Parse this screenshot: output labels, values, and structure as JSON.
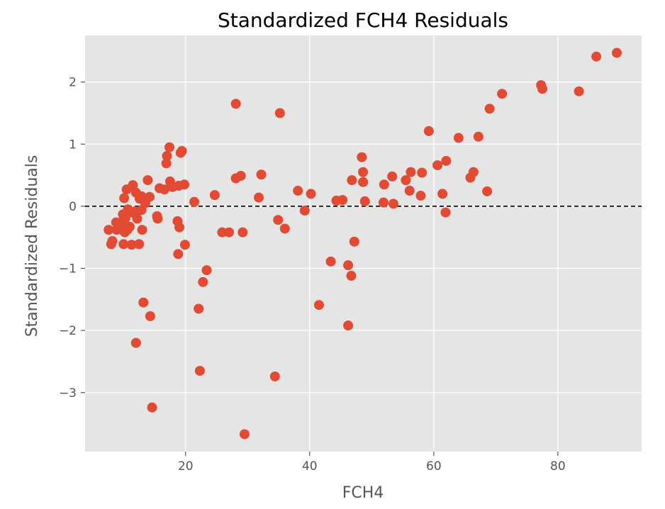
{
  "chart_data": {
    "type": "scatter",
    "title": "Standardized FCH4 Residuals",
    "xlabel": "FCH4",
    "ylabel": "Standardized Residuals",
    "xlim": [
      3.8,
      93.5
    ],
    "ylim": [
      -3.95,
      2.75
    ],
    "xticks": [
      20,
      40,
      60,
      80
    ],
    "yticks": [
      -3,
      -2,
      -1,
      0,
      1,
      2
    ],
    "xtick_labels": [
      "20",
      "40",
      "60",
      "80"
    ],
    "ytick_labels": [
      "−3",
      "−2",
      "−1",
      "0",
      "1",
      "2"
    ],
    "grid": true,
    "reference_line": {
      "y": 0,
      "style": "dashed",
      "color": "#000000"
    },
    "colors": {
      "background": "#e5e5e5",
      "grid": "#ffffff",
      "marker": "#e24a33"
    },
    "points": [
      [
        7.6,
        -0.38
      ],
      [
        8.0,
        -0.61
      ],
      [
        8.2,
        -0.56
      ],
      [
        8.8,
        -0.26
      ],
      [
        8.9,
        -0.38
      ],
      [
        9.3,
        -0.29
      ],
      [
        9.6,
        -0.37
      ],
      [
        9.7,
        -0.25
      ],
      [
        9.9,
        -0.13
      ],
      [
        10.0,
        -0.61
      ],
      [
        10.1,
        0.13
      ],
      [
        10.2,
        -0.42
      ],
      [
        10.3,
        -0.19
      ],
      [
        10.5,
        0.27
      ],
      [
        10.6,
        -0.38
      ],
      [
        10.7,
        -0.05
      ],
      [
        11.0,
        -0.33
      ],
      [
        11.3,
        -0.1
      ],
      [
        11.3,
        -0.62
      ],
      [
        11.5,
        0.34
      ],
      [
        11.9,
        -0.08
      ],
      [
        12.0,
        0.22
      ],
      [
        12.0,
        -2.2
      ],
      [
        12.2,
        -0.2
      ],
      [
        12.5,
        -0.61
      ],
      [
        12.6,
        0.12
      ],
      [
        12.9,
        0.16
      ],
      [
        12.9,
        -0.06
      ],
      [
        13.0,
        -0.38
      ],
      [
        13.2,
        -1.55
      ],
      [
        13.5,
        0.05
      ],
      [
        13.9,
        0.42
      ],
      [
        14.2,
        0.15
      ],
      [
        14.3,
        -1.77
      ],
      [
        14.6,
        -3.24
      ],
      [
        15.4,
        -0.16
      ],
      [
        15.5,
        -0.2
      ],
      [
        15.8,
        0.29
      ],
      [
        16.6,
        0.27
      ],
      [
        16.9,
        0.69
      ],
      [
        17.0,
        0.81
      ],
      [
        17.4,
        0.95
      ],
      [
        17.5,
        0.4
      ],
      [
        17.9,
        0.31
      ],
      [
        18.7,
        -0.24
      ],
      [
        18.8,
        -0.77
      ],
      [
        18.9,
        0.33
      ],
      [
        19.0,
        -0.34
      ],
      [
        19.2,
        0.86
      ],
      [
        19.4,
        0.89
      ],
      [
        19.8,
        0.35
      ],
      [
        19.9,
        -0.62
      ],
      [
        21.4,
        0.07
      ],
      [
        22.1,
        -1.65
      ],
      [
        22.3,
        -2.65
      ],
      [
        22.8,
        -1.22
      ],
      [
        23.4,
        -1.03
      ],
      [
        24.7,
        0.18
      ],
      [
        25.9,
        -0.42
      ],
      [
        27.0,
        -0.42
      ],
      [
        28.1,
        1.65
      ],
      [
        28.1,
        0.45
      ],
      [
        28.9,
        0.49
      ],
      [
        29.2,
        -0.42
      ],
      [
        29.5,
        -3.67
      ],
      [
        31.8,
        0.14
      ],
      [
        32.2,
        0.51
      ],
      [
        34.4,
        -2.74
      ],
      [
        34.9,
        -0.22
      ],
      [
        35.2,
        1.5
      ],
      [
        36.0,
        -0.36
      ],
      [
        38.1,
        0.25
      ],
      [
        39.2,
        -0.07
      ],
      [
        40.2,
        0.2
      ],
      [
        41.5,
        -1.59
      ],
      [
        43.4,
        -0.89
      ],
      [
        44.3,
        0.09
      ],
      [
        45.3,
        0.1
      ],
      [
        46.2,
        -0.95
      ],
      [
        46.2,
        -1.92
      ],
      [
        46.7,
        -1.12
      ],
      [
        46.8,
        0.42
      ],
      [
        47.2,
        -0.57
      ],
      [
        48.4,
        0.79
      ],
      [
        48.6,
        0.55
      ],
      [
        48.6,
        0.39
      ],
      [
        48.9,
        0.08
      ],
      [
        51.9,
        0.06
      ],
      [
        52.0,
        0.35
      ],
      [
        53.3,
        0.48
      ],
      [
        53.5,
        0.04
      ],
      [
        55.5,
        0.42
      ],
      [
        56.1,
        0.25
      ],
      [
        56.3,
        0.55
      ],
      [
        57.9,
        0.17
      ],
      [
        58.1,
        0.54
      ],
      [
        59.2,
        1.21
      ],
      [
        60.6,
        0.66
      ],
      [
        61.4,
        0.2
      ],
      [
        61.9,
        -0.1
      ],
      [
        62.0,
        0.73
      ],
      [
        64.0,
        1.1
      ],
      [
        65.9,
        0.46
      ],
      [
        66.4,
        0.55
      ],
      [
        67.2,
        1.12
      ],
      [
        68.6,
        0.24
      ],
      [
        69.0,
        1.57
      ],
      [
        71.0,
        1.81
      ],
      [
        77.3,
        1.95
      ],
      [
        77.5,
        1.89
      ],
      [
        83.4,
        1.85
      ],
      [
        86.2,
        2.41
      ],
      [
        89.5,
        2.47
      ]
    ]
  }
}
